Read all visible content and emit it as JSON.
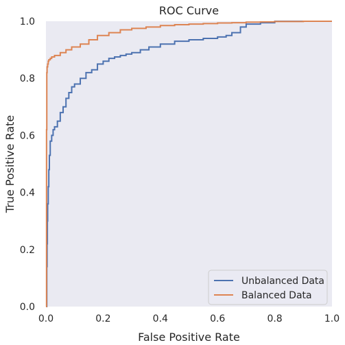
{
  "chart_data": {
    "type": "line",
    "title": "ROC Curve",
    "xlabel": "False Positive Rate",
    "ylabel": "True Positive Rate",
    "xlim": [
      0.0,
      1.0
    ],
    "ylim": [
      0.0,
      1.0
    ],
    "xticks": [
      "0.0",
      "0.2",
      "0.4",
      "0.6",
      "0.8",
      "1.0"
    ],
    "yticks": [
      "0.0",
      "0.2",
      "0.4",
      "0.6",
      "0.8",
      "1.0"
    ],
    "grid": false,
    "legend_position": "lower right",
    "colors": {
      "background": "#eaeaf2",
      "unbalanced": "#4c72b0",
      "balanced": "#dd8452"
    },
    "series": [
      {
        "name": "Unbalanced Data",
        "x": [
          0.0,
          0.003,
          0.004,
          0.005,
          0.006,
          0.008,
          0.01,
          0.012,
          0.015,
          0.02,
          0.025,
          0.03,
          0.04,
          0.05,
          0.06,
          0.07,
          0.08,
          0.09,
          0.1,
          0.12,
          0.14,
          0.16,
          0.18,
          0.2,
          0.22,
          0.24,
          0.26,
          0.28,
          0.3,
          0.33,
          0.36,
          0.4,
          0.45,
          0.5,
          0.55,
          0.6,
          0.63,
          0.65,
          0.68,
          0.7,
          0.75,
          0.8,
          0.85,
          0.9,
          1.0
        ],
        "y": [
          0.0,
          0.14,
          0.22,
          0.3,
          0.36,
          0.42,
          0.48,
          0.53,
          0.58,
          0.6,
          0.62,
          0.63,
          0.65,
          0.68,
          0.7,
          0.73,
          0.75,
          0.77,
          0.78,
          0.8,
          0.82,
          0.83,
          0.85,
          0.86,
          0.87,
          0.875,
          0.88,
          0.885,
          0.89,
          0.9,
          0.91,
          0.92,
          0.93,
          0.935,
          0.94,
          0.945,
          0.95,
          0.96,
          0.98,
          0.99,
          0.995,
          1.0,
          1.0,
          1.0,
          1.0
        ]
      },
      {
        "name": "Balanced Data",
        "x": [
          0.0,
          0.002,
          0.003,
          0.004,
          0.006,
          0.008,
          0.01,
          0.015,
          0.02,
          0.03,
          0.05,
          0.07,
          0.09,
          0.12,
          0.15,
          0.18,
          0.22,
          0.26,
          0.3,
          0.35,
          0.4,
          0.45,
          0.5,
          0.55,
          0.6,
          0.65,
          0.7,
          0.75,
          0.8,
          0.9,
          1.0
        ],
        "y": [
          0.0,
          0.62,
          0.82,
          0.84,
          0.85,
          0.86,
          0.865,
          0.87,
          0.875,
          0.88,
          0.89,
          0.9,
          0.91,
          0.92,
          0.935,
          0.95,
          0.96,
          0.97,
          0.975,
          0.98,
          0.985,
          0.988,
          0.99,
          0.992,
          0.994,
          0.995,
          0.997,
          0.998,
          0.999,
          1.0,
          1.0
        ]
      }
    ]
  }
}
